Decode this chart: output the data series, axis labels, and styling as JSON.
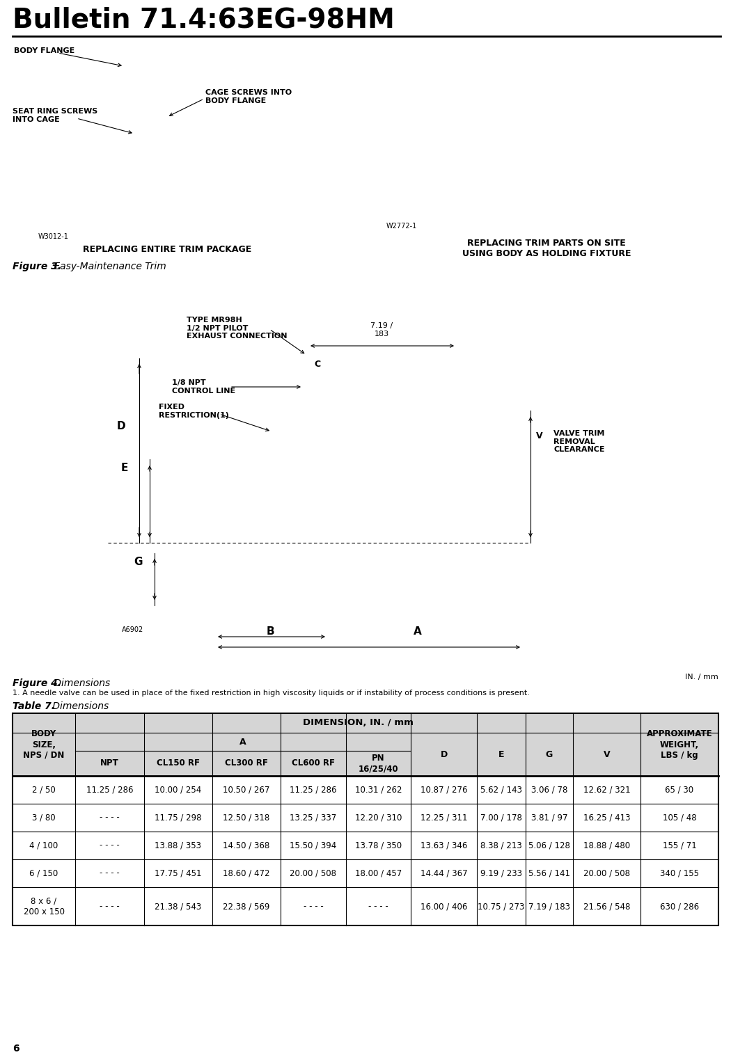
{
  "title": "Bulletin 71.4:63EG-98HM",
  "fig3_bold": "Figure 3.",
  "fig3_italic": " Easy-Maintenance Trim",
  "fig4_bold": "Figure 4.",
  "fig4_italic": " Dimensions",
  "table7_bold": "Table 7.",
  "table7_italic": " Dimensions",
  "footnote": "1. A needle valve can be used in place of the fixed restriction in high viscosity liquids or if instability of process conditions is present.",
  "in_mm_label": "IN. / mm",
  "page_number": "6",
  "left_label": "REPLACING ENTIRE TRIM PACKAGE",
  "right_label1": "REPLACING TRIM PARTS ON SITE",
  "right_label2": "USING BODY AS HOLDING FIXTURE",
  "ann_body_flange": "BODY FLANGE",
  "ann_seat_ring": "SEAT RING SCREWS\nINTO CAGE",
  "ann_cage_screws": "CAGE SCREWS INTO\nBODY FLANGE",
  "ann_type": "TYPE MR98H\n1/2 NPT PILOT\nEXHAUST CONNECTION",
  "ann_control": "1/8 NPT\nCONTROL LINE",
  "ann_fixed": "FIXED\nRESTRICTION(1)",
  "ann_valve": "VALVE TRIM\nREMOVAL\nCLEARANCE",
  "label_w3012": "W3012-1",
  "label_w2772": "W2772-1",
  "label_a6902": "A6902",
  "dim_719": "7.19 /\n183",
  "table_data": [
    [
      "2 / 50",
      "11.25 / 286",
      "10.00 / 254",
      "10.50 / 267",
      "11.25 / 286",
      "10.31 / 262",
      "10.87 / 276",
      "5.62 / 143",
      "3.06 / 78",
      "12.62 / 321",
      "65 / 30"
    ],
    [
      "3 / 80",
      "- - - -",
      "11.75 / 298",
      "12.50 / 318",
      "13.25 / 337",
      "12.20 / 310",
      "12.25 / 311",
      "7.00 / 178",
      "3.81 / 97",
      "16.25 / 413",
      "105 / 48"
    ],
    [
      "4 / 100",
      "- - - -",
      "13.88 / 353",
      "14.50 / 368",
      "15.50 / 394",
      "13.78 / 350",
      "13.63 / 346",
      "8.38 / 213",
      "5.06 / 128",
      "18.88 / 480",
      "155 / 71"
    ],
    [
      "6 / 150",
      "- - - -",
      "17.75 / 451",
      "18.60 / 472",
      "20.00 / 508",
      "18.00 / 457",
      "14.44 / 367",
      "9.19 / 233",
      "5.56 / 141",
      "20.00 / 508",
      "340 / 155"
    ],
    [
      "8 x 6 /\n200 x 150",
      "- - - -",
      "21.38 / 543",
      "22.38 / 569",
      "- - - -",
      "- - - -",
      "16.00 / 406",
      "10.75 / 273",
      "7.19 / 183",
      "21.56 / 548",
      "630 / 286"
    ]
  ],
  "bg_color": "#ffffff"
}
